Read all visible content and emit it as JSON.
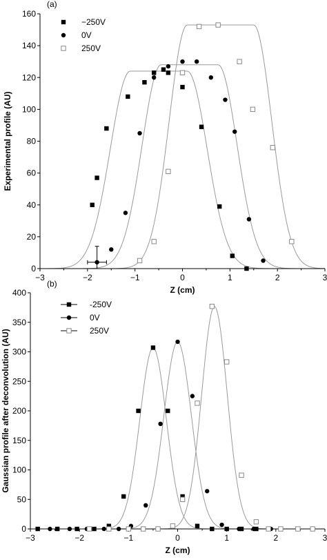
{
  "chart_data": [
    {
      "panel_label": "(a)",
      "type": "scatter",
      "xlabel": "Z (cm)",
      "ylabel": "Experimental profile (AU)",
      "xlim": [
        -3,
        3
      ],
      "ylim": [
        0,
        160
      ],
      "xticks": [
        -3,
        -2,
        -1,
        0,
        1,
        2,
        3
      ],
      "yticks": [
        0,
        20,
        40,
        60,
        80,
        100,
        120,
        140,
        160
      ],
      "x_tick_labels": [
        "−3",
        "−2",
        "−1",
        "0",
        "1",
        "2",
        "3"
      ],
      "y_tick_labels": [
        "0",
        "20",
        "40",
        "60",
        "80",
        "100",
        "120",
        "140",
        "160"
      ],
      "legend_position": "top-left",
      "grid": false,
      "series": [
        {
          "name": "−250V",
          "marker": "filled-square",
          "points": [
            {
              "x": -1.9,
              "y": 40
            },
            {
              "x": -1.8,
              "y": 57
            },
            {
              "x": -1.6,
              "y": 88
            },
            {
              "x": -1.15,
              "y": 108
            },
            {
              "x": -0.8,
              "y": 117
            },
            {
              "x": -0.6,
              "y": 123
            },
            {
              "x": -0.4,
              "y": 125
            },
            {
              "x": -0.3,
              "y": 123
            },
            {
              "x": 0.0,
              "y": 114
            },
            {
              "x": 0.4,
              "y": 89
            },
            {
              "x": 0.78,
              "y": 39
            },
            {
              "x": 1.05,
              "y": 8
            },
            {
              "x": 1.35,
              "y": 0
            }
          ],
          "fit_curve": {
            "amplitude": 124,
            "center": -0.5,
            "flat_half_width": 0.6,
            "edge_sigma": 0.42
          }
        },
        {
          "name": "0V",
          "marker": "filled-circle",
          "points": [
            {
              "x": -1.8,
              "y": 4
            },
            {
              "x": -1.5,
              "y": 12
            },
            {
              "x": -1.2,
              "y": 35
            },
            {
              "x": -0.9,
              "y": 85
            },
            {
              "x": -0.6,
              "y": 120
            },
            {
              "x": -0.3,
              "y": 127
            },
            {
              "x": 0.0,
              "y": 130
            },
            {
              "x": 0.3,
              "y": 130
            },
            {
              "x": 0.6,
              "y": 120
            },
            {
              "x": 0.9,
              "y": 106
            },
            {
              "x": 1.1,
              "y": 86
            },
            {
              "x": 1.4,
              "y": 31
            },
            {
              "x": 1.7,
              "y": 5
            }
          ],
          "fit_curve": {
            "amplitude": 128,
            "center": 0.15,
            "flat_half_width": 0.6,
            "edge_sigma": 0.4
          },
          "error_bar_point": {
            "x": -1.8,
            "y": 4,
            "xerr": 0.2,
            "yerr": 10
          }
        },
        {
          "name": "250V",
          "marker": "open-square",
          "points": [
            {
              "x": -0.9,
              "y": 5
            },
            {
              "x": -0.6,
              "y": 17
            },
            {
              "x": -0.3,
              "y": 61
            },
            {
              "x": 0.0,
              "y": 123
            },
            {
              "x": 0.35,
              "y": 152
            },
            {
              "x": 0.75,
              "y": 153
            },
            {
              "x": 1.2,
              "y": 130
            },
            {
              "x": 1.48,
              "y": 100
            },
            {
              "x": 1.9,
              "y": 76
            },
            {
              "x": 2.3,
              "y": 17
            }
          ],
          "fit_curve": {
            "amplitude": 153,
            "center": 0.8,
            "flat_half_width": 0.7,
            "edge_sigma": 0.38
          }
        }
      ]
    },
    {
      "panel_label": "(b)",
      "type": "scatter",
      "xlabel": "Z (cm)",
      "ylabel": "Gaussian profile after deconvolution (AU)",
      "xlim": [
        -3,
        3
      ],
      "ylim": [
        0,
        400
      ],
      "xticks": [
        -3,
        -2,
        -1,
        0,
        1,
        2,
        3
      ],
      "yticks": [
        0,
        50,
        100,
        150,
        200,
        250,
        300,
        350,
        400
      ],
      "x_tick_labels": [
        "−3",
        "−2",
        "−1",
        "0",
        "1",
        "2",
        "3"
      ],
      "y_tick_labels": [
        "0",
        "50",
        "100",
        "150",
        "200",
        "250",
        "300",
        "350",
        "400"
      ],
      "legend_position": "top-left",
      "grid": false,
      "series": [
        {
          "name": "-250V",
          "marker": "filled-square",
          "points": [
            {
              "x": -2.85,
              "y": 0
            },
            {
              "x": -2.45,
              "y": 0
            },
            {
              "x": -2.05,
              "y": 0
            },
            {
              "x": -1.7,
              "y": 0
            },
            {
              "x": -1.4,
              "y": 5
            },
            {
              "x": -1.1,
              "y": 55
            },
            {
              "x": -0.8,
              "y": 200
            },
            {
              "x": -0.5,
              "y": 307
            },
            {
              "x": -0.2,
              "y": 200
            },
            {
              "x": 0.1,
              "y": 55
            },
            {
              "x": 0.4,
              "y": 5
            },
            {
              "x": 0.7,
              "y": 0
            },
            {
              "x": 1.0,
              "y": 0
            },
            {
              "x": 1.3,
              "y": 0
            },
            {
              "x": 1.6,
              "y": 0
            }
          ],
          "fit_curve": {
            "amplitude": 307,
            "center": -0.5,
            "sigma": 0.27
          }
        },
        {
          "name": " 0V",
          "marker": "filled-circle",
          "points": [
            {
              "x": -2.6,
              "y": 0
            },
            {
              "x": -2.2,
              "y": 0
            },
            {
              "x": -1.85,
              "y": 0
            },
            {
              "x": -1.5,
              "y": 0
            },
            {
              "x": -1.2,
              "y": 0
            },
            {
              "x": -0.95,
              "y": 5
            },
            {
              "x": -0.65,
              "y": 40
            },
            {
              "x": -0.35,
              "y": 178
            },
            {
              "x": 0.0,
              "y": 317
            },
            {
              "x": 0.3,
              "y": 225
            },
            {
              "x": 0.6,
              "y": 64
            },
            {
              "x": 0.9,
              "y": 7
            },
            {
              "x": 1.25,
              "y": 0
            },
            {
              "x": 1.55,
              "y": 0
            },
            {
              "x": 1.9,
              "y": 0
            }
          ],
          "fit_curve": {
            "amplitude": 317,
            "center": 0.0,
            "sigma": 0.28
          }
        },
        {
          "name": "250V",
          "marker": "open-square",
          "points": [
            {
              "x": -1.8,
              "y": 0
            },
            {
              "x": -1.4,
              "y": 0
            },
            {
              "x": -1.0,
              "y": 0
            },
            {
              "x": -0.7,
              "y": 0
            },
            {
              "x": -0.4,
              "y": 0
            },
            {
              "x": -0.1,
              "y": 5
            },
            {
              "x": 0.1,
              "y": 50
            },
            {
              "x": 0.4,
              "y": 213
            },
            {
              "x": 0.7,
              "y": 377
            },
            {
              "x": 1.0,
              "y": 283
            },
            {
              "x": 1.3,
              "y": 91
            },
            {
              "x": 1.6,
              "y": 12
            },
            {
              "x": 1.85,
              "y": 0
            },
            {
              "x": 2.1,
              "y": 0
            },
            {
              "x": 2.45,
              "y": 0
            },
            {
              "x": 2.75,
              "y": 0
            }
          ],
          "fit_curve": {
            "amplitude": 377,
            "center": 0.75,
            "sigma": 0.26
          }
        }
      ]
    }
  ]
}
